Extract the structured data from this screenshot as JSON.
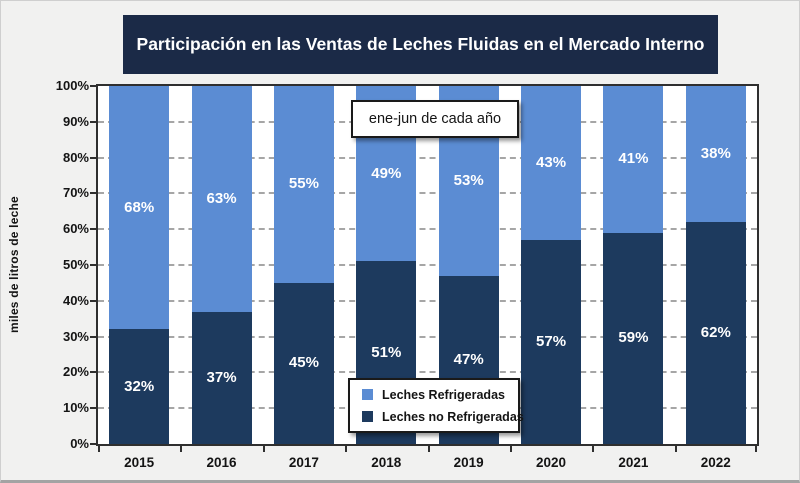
{
  "title": "Participación en las Ventas de Leches Fluidas en el Mercado Interno",
  "annotation_box": "ene-jun de cada año",
  "colors": {
    "title_bg": "#1B2A47",
    "title_text": "#FFFFFF",
    "refrigeradas": "#5B8CD3",
    "no_refrigeradas": "#1D3A5E",
    "chart_bg": "#F1F1F0",
    "plot_bg": "#FFFFFF",
    "gridline": "#A6A6A6",
    "axis_line": "#2F2F2F",
    "bar_label_text": "#FFFFFF"
  },
  "legend": {
    "items": [
      {
        "label": "Leches Refrigeradas",
        "color": "#5B8CD3"
      },
      {
        "label": "Leches no Refrigeradas",
        "color": "#1D3A5E"
      }
    ]
  },
  "chart_data": {
    "type": "bar",
    "stacked": true,
    "title": "Participación en las Ventas de Leches Fluidas en el Mercado Interno",
    "annotation": "ene-jun de cada año",
    "categories": [
      "2015",
      "2016",
      "2017",
      "2018",
      "2019",
      "2020",
      "2021",
      "2022"
    ],
    "series": [
      {
        "name": "Leches no Refrigeradas",
        "color": "#1D3A5E",
        "values": [
          32,
          37,
          45,
          51,
          47,
          57,
          59,
          62
        ]
      },
      {
        "name": "Leches Refrigeradas",
        "color": "#5B8CD3",
        "values": [
          68,
          63,
          55,
          49,
          53,
          43,
          41,
          38
        ]
      }
    ],
    "xlabel": "",
    "ylabel": "miles de litros de leche",
    "ylim": [
      0,
      100
    ],
    "y_ticks": [
      0,
      10,
      20,
      30,
      40,
      50,
      60,
      70,
      80,
      90,
      100
    ],
    "y_tick_suffix": "%",
    "data_label_suffix": "%",
    "grid": "dashed-horizontal",
    "legend_position": "inside-bottom-center"
  }
}
